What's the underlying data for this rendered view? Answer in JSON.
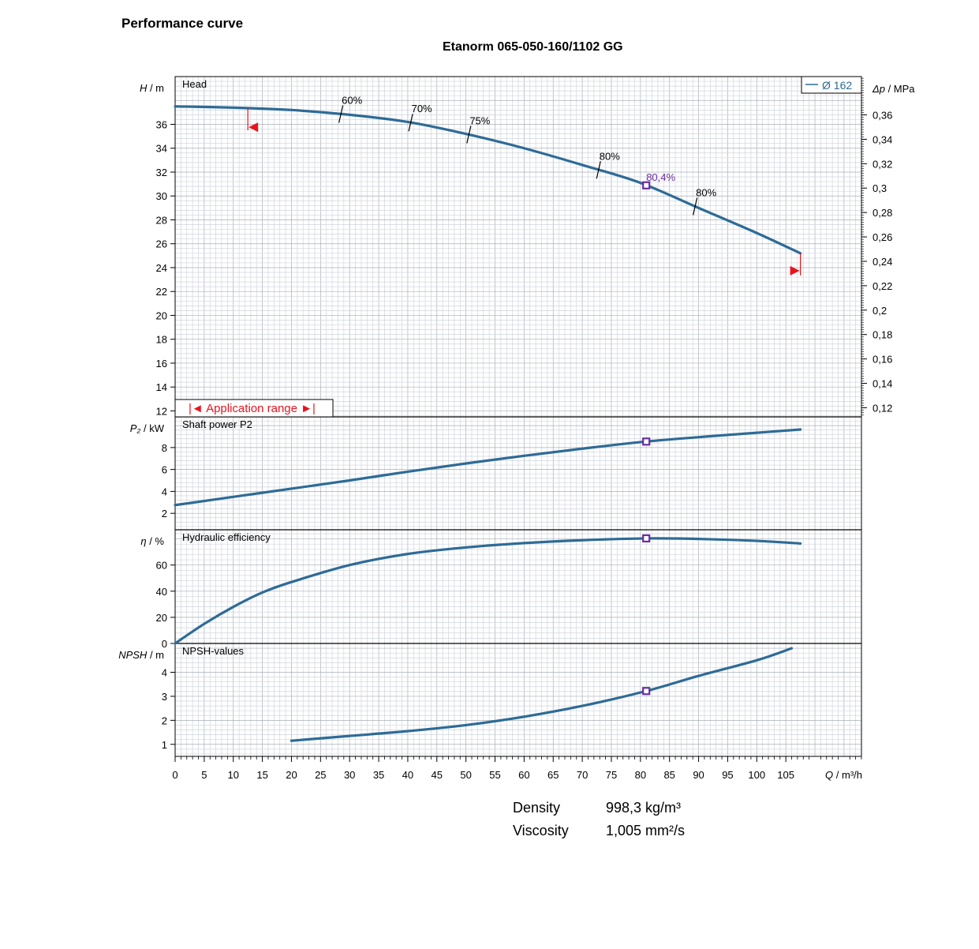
{
  "header": {
    "page_title": "Performance curve",
    "chart_title": "Etanorm 065-050-160/1102 GG"
  },
  "chart_data": {
    "type": "line",
    "x_axis": {
      "label": "Q / m³/h",
      "range": [
        0,
        118
      ],
      "ticks": [
        0,
        5,
        10,
        15,
        20,
        25,
        30,
        35,
        40,
        45,
        50,
        55,
        60,
        65,
        70,
        75,
        80,
        85,
        90,
        95,
        100,
        105
      ]
    },
    "legend": {
      "entries": [
        "Ø 162"
      ],
      "placement": "top-right"
    },
    "colors": {
      "curve": "#2e6b96",
      "marker": "#6a2ea0",
      "range_marker": "#e8141e",
      "grid_minor": "#d0d5dc",
      "grid_major": "#a8afb8"
    },
    "bep_q": 81,
    "bep_label": "80,4%",
    "panels": [
      {
        "id": "head",
        "title": "Head",
        "ylabel": "H / m",
        "ylim": [
          11.5,
          40
        ],
        "yticks": [
          12,
          14,
          16,
          18,
          20,
          22,
          24,
          26,
          28,
          30,
          32,
          34,
          36
        ],
        "secondary_axis": {
          "label": "Δp / MPa",
          "ticks": [
            "0,12",
            "0,14",
            "0,16",
            "0,18",
            "0,2",
            "0,22",
            "0,24",
            "0,26",
            "0,28",
            "0,3",
            "0,32",
            "0,34",
            "0,36"
          ],
          "values": [
            0.12,
            0.14,
            0.16,
            0.18,
            0.2,
            0.22,
            0.24,
            0.26,
            0.28,
            0.3,
            0.32,
            0.34,
            0.36
          ],
          "m_per_mpa": 102.2
        },
        "series": {
          "name": "Ø 162",
          "x": [
            0,
            10,
            20,
            30,
            40,
            50,
            60,
            70,
            80,
            90,
            100,
            107.5
          ],
          "y": [
            37.5,
            37.4,
            37.2,
            36.8,
            36.2,
            35.2,
            34.0,
            32.6,
            31.1,
            29.0,
            26.9,
            25.2
          ]
        },
        "efficiency_marks": [
          {
            "q": 28.5,
            "label": "60%"
          },
          {
            "q": 40.5,
            "label": "70%"
          },
          {
            "q": 50.5,
            "label": "75%"
          },
          {
            "q": 72.8,
            "label": "80%"
          },
          {
            "q": 89.4,
            "label": "80%"
          }
        ],
        "application_range": {
          "label": "Application range",
          "q_min": 12.5,
          "q_max": 107.5
        }
      },
      {
        "id": "power",
        "title": "Shaft power P2",
        "ylabel": "P₂ / kW",
        "ylim": [
          0.5,
          10.8
        ],
        "yticks": [
          2,
          4,
          6,
          8
        ],
        "series": {
          "x": [
            0,
            10,
            20,
            30,
            40,
            50,
            60,
            70,
            80,
            90,
            100,
            107.5
          ],
          "y": [
            2.75,
            3.5,
            4.25,
            5.0,
            5.8,
            6.55,
            7.25,
            7.9,
            8.5,
            8.95,
            9.35,
            9.65
          ]
        }
      },
      {
        "id": "efficiency",
        "title": "Hydraulic efficiency",
        "ylabel": "η / %",
        "ylim": [
          0,
          87
        ],
        "yticks": [
          0,
          20,
          40,
          60
        ],
        "series": {
          "x": [
            0,
            5,
            10,
            15,
            20,
            30,
            40,
            50,
            60,
            70,
            81,
            90,
            100,
            107.5
          ],
          "y": [
            0,
            15,
            28,
            39,
            47,
            60,
            68.5,
            73.5,
            76.8,
            79,
            80.4,
            80,
            78.5,
            76.5
          ]
        }
      },
      {
        "id": "npsh",
        "title": "NPSH-values",
        "ylabel": "NPSH / m",
        "ylim": [
          0.5,
          5.2
        ],
        "yticks": [
          1,
          2,
          3,
          4
        ],
        "series": {
          "x": [
            20,
            30,
            40,
            50,
            60,
            70,
            81,
            90,
            100,
            106
          ],
          "y": [
            1.15,
            1.35,
            1.55,
            1.8,
            2.15,
            2.6,
            3.22,
            3.85,
            4.5,
            5.0
          ]
        }
      }
    ]
  },
  "fluid": {
    "density_label": "Density",
    "density_value": "998,3 kg/m³",
    "viscosity_label": "Viscosity",
    "viscosity_value": "1,005 mm²/s"
  }
}
